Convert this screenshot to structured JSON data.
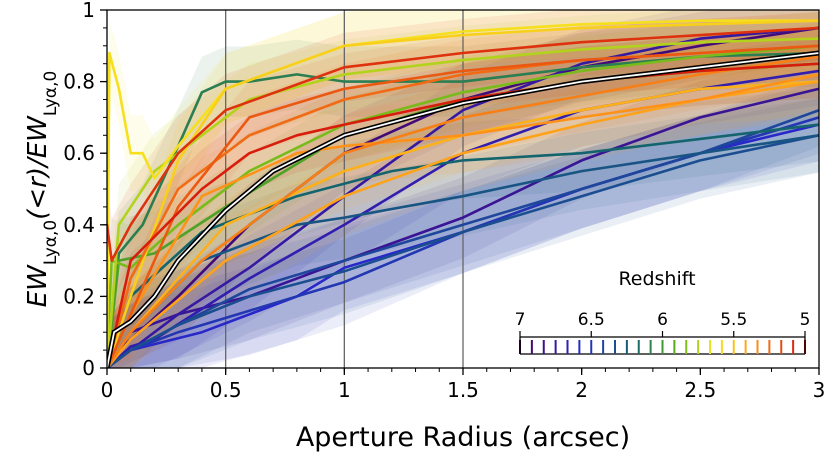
{
  "chart_data": {
    "type": "line",
    "xlabel": "Aperture  Radius  (arcsec)",
    "ylabel": "EW_{Lyα,0}(<r)/EW_{Lyα,0}",
    "xlim": [
      0,
      3
    ],
    "ylim": [
      0,
      1
    ],
    "xticks": [
      0,
      0.5,
      1,
      1.5,
      2,
      2.5,
      3
    ],
    "xtick_labels": [
      "0",
      "0.5",
      "1",
      "1.5",
      "2",
      "2.5",
      "3"
    ],
    "yticks": [
      0,
      0.2,
      0.4,
      0.6,
      0.8,
      1
    ],
    "ytick_labels": [
      "0",
      "0.2",
      "0.4",
      "0.6",
      "0.8",
      "1"
    ],
    "vlines": [
      0.5,
      1.0,
      1.5
    ],
    "grid": false,
    "colorbar": {
      "title": "Redshift",
      "range": [
        7,
        5
      ],
      "ticks": [
        7,
        6.5,
        6,
        5.5,
        5
      ],
      "tick_labels": [
        "7",
        "6.5",
        "6",
        "5.5",
        "5"
      ],
      "segments": 24
    },
    "median_curve": {
      "x": [
        0,
        0.03,
        0.1,
        0.2,
        0.3,
        0.5,
        0.7,
        1.0,
        1.5,
        2.0,
        2.5,
        3.0
      ],
      "y": [
        0.0,
        0.1,
        0.13,
        0.2,
        0.3,
        0.44,
        0.55,
        0.65,
        0.74,
        0.8,
        0.84,
        0.88
      ]
    },
    "series": [
      {
        "z": 6.9,
        "x": [
          0,
          0.05,
          0.3,
          0.6,
          1.0,
          1.5,
          2.0,
          2.5,
          3.0
        ],
        "y": [
          0.0,
          0.05,
          0.2,
          0.4,
          0.6,
          0.75,
          0.84,
          0.9,
          0.95
        ]
      },
      {
        "z": 6.8,
        "x": [
          0,
          0.1,
          0.3,
          0.6,
          1.0,
          1.5,
          2.0,
          2.5,
          3.0
        ],
        "y": [
          0.0,
          0.1,
          0.15,
          0.2,
          0.3,
          0.42,
          0.58,
          0.7,
          0.78
        ]
      },
      {
        "z": 6.75,
        "x": [
          0,
          0.1,
          0.3,
          0.6,
          1.0,
          1.5,
          2.0,
          2.5,
          3.0
        ],
        "y": [
          0.0,
          0.05,
          0.15,
          0.28,
          0.48,
          0.72,
          0.85,
          0.92,
          0.95
        ]
      },
      {
        "z": 6.7,
        "x": [
          0,
          0.1,
          0.2,
          0.6,
          1.0,
          1.5,
          2.0,
          2.5,
          3.0
        ],
        "y": [
          0.0,
          0.06,
          0.08,
          0.25,
          0.4,
          0.6,
          0.72,
          0.78,
          0.83
        ]
      },
      {
        "z": 6.6,
        "x": [
          0,
          0.1,
          0.4,
          0.8,
          1.0,
          1.5,
          2.0,
          2.5,
          3.0
        ],
        "y": [
          0.0,
          0.05,
          0.1,
          0.2,
          0.28,
          0.38,
          0.5,
          0.6,
          0.68
        ]
      },
      {
        "z": 6.5,
        "x": [
          0,
          0.1,
          0.3,
          0.6,
          1.0,
          1.5,
          2.0,
          2.5,
          3.0
        ],
        "y": [
          0.0,
          0.05,
          0.1,
          0.16,
          0.24,
          0.38,
          0.5,
          0.6,
          0.7
        ]
      },
      {
        "z": 6.4,
        "x": [
          0,
          0.1,
          0.3,
          0.6,
          1.0,
          1.5,
          2.0,
          2.5,
          3.0
        ],
        "y": [
          0.0,
          0.05,
          0.12,
          0.22,
          0.3,
          0.4,
          0.5,
          0.6,
          0.72
        ]
      },
      {
        "z": 6.35,
        "x": [
          0,
          0.1,
          0.3,
          0.6,
          1.0,
          1.5,
          2.0,
          2.5,
          3.0
        ],
        "y": [
          0.0,
          0.05,
          0.12,
          0.2,
          0.27,
          0.38,
          0.48,
          0.58,
          0.65
        ]
      },
      {
        "z": 6.3,
        "x": [
          0,
          0.1,
          0.4,
          0.8,
          1.0,
          1.5,
          2.0,
          2.5,
          3.0
        ],
        "y": [
          0.0,
          0.1,
          0.3,
          0.4,
          0.42,
          0.48,
          0.55,
          0.6,
          0.65
        ]
      },
      {
        "z": 6.2,
        "x": [
          0,
          0.1,
          0.4,
          0.8,
          1.2,
          1.5,
          2.0,
          2.5,
          3.0
        ],
        "y": [
          0.0,
          0.2,
          0.38,
          0.48,
          0.55,
          0.58,
          0.6,
          0.64,
          0.68
        ]
      },
      {
        "z": 6.1,
        "x": [
          0,
          0.05,
          0.15,
          0.3,
          0.4,
          0.5,
          0.6,
          0.8,
          1.0,
          1.5,
          2.0,
          2.5,
          3.0
        ],
        "y": [
          0.0,
          0.32,
          0.4,
          0.62,
          0.77,
          0.8,
          0.8,
          0.82,
          0.8,
          0.8,
          0.84,
          0.87,
          0.88
        ]
      },
      {
        "z": 5.95,
        "x": [
          0,
          0.05,
          0.2,
          0.5,
          1.0,
          1.5,
          2.0,
          2.5,
          3.0
        ],
        "y": [
          0.0,
          0.3,
          0.32,
          0.45,
          0.65,
          0.75,
          0.8,
          0.83,
          0.85
        ]
      },
      {
        "z": 5.85,
        "x": [
          0,
          0.02,
          0.1,
          0.3,
          0.6,
          1.0,
          1.5,
          2.0,
          2.5,
          3.0
        ],
        "y": [
          0.05,
          0.3,
          0.28,
          0.4,
          0.55,
          0.68,
          0.77,
          0.83,
          0.87,
          0.9
        ]
      },
      {
        "z": 5.75,
        "x": [
          0,
          0.05,
          0.2,
          0.4,
          0.6,
          1.0,
          1.5,
          2.0,
          2.5,
          3.0
        ],
        "y": [
          0.0,
          0.4,
          0.55,
          0.65,
          0.75,
          0.82,
          0.86,
          0.89,
          0.91,
          0.92
        ]
      },
      {
        "z": 5.6,
        "x": [
          0,
          0.01,
          0.05,
          0.1,
          0.15,
          0.2,
          0.3,
          0.5,
          1.0,
          1.5,
          2.0,
          2.5,
          3.0
        ],
        "y": [
          0.0,
          0.88,
          0.78,
          0.6,
          0.6,
          0.53,
          0.62,
          0.78,
          0.9,
          0.94,
          0.96,
          0.97,
          0.97
        ]
      },
      {
        "z": 5.55,
        "x": [
          0,
          0.1,
          0.3,
          0.5,
          1.0,
          1.5,
          2.0,
          2.5,
          3.0
        ],
        "y": [
          0.0,
          0.2,
          0.58,
          0.78,
          0.9,
          0.93,
          0.95,
          0.96,
          0.97
        ]
      },
      {
        "z": 5.45,
        "x": [
          0,
          0.1,
          0.5,
          1.0,
          1.5,
          2.0,
          2.5,
          3.0
        ],
        "y": [
          0.0,
          0.1,
          0.4,
          0.55,
          0.65,
          0.72,
          0.78,
          0.8
        ]
      },
      {
        "z": 5.4,
        "x": [
          0,
          0.1,
          0.5,
          1.0,
          1.5,
          2.0,
          2.5,
          3.0
        ],
        "y": [
          0.0,
          0.08,
          0.3,
          0.48,
          0.6,
          0.68,
          0.75,
          0.8
        ]
      },
      {
        "z": 5.35,
        "x": [
          0,
          0.1,
          0.4,
          0.8,
          1.0,
          1.5,
          2.0,
          2.5,
          3.0
        ],
        "y": [
          0.0,
          0.15,
          0.48,
          0.6,
          0.62,
          0.65,
          0.7,
          0.75,
          0.82
        ]
      },
      {
        "z": 5.3,
        "x": [
          0,
          0.1,
          0.4,
          0.8,
          1.0,
          1.5,
          2.0,
          2.5,
          3.0
        ],
        "y": [
          0.0,
          0.1,
          0.3,
          0.5,
          0.6,
          0.7,
          0.76,
          0.82,
          0.87
        ]
      },
      {
        "z": 5.25,
        "x": [
          0,
          0.1,
          0.3,
          0.6,
          1.0,
          1.5,
          2.0,
          2.5,
          3.0
        ],
        "y": [
          0.0,
          0.25,
          0.5,
          0.65,
          0.75,
          0.82,
          0.86,
          0.88,
          0.9
        ]
      },
      {
        "z": 5.2,
        "x": [
          0,
          0.1,
          0.3,
          0.6,
          1.0,
          1.5,
          2.0,
          2.5,
          3.0
        ],
        "y": [
          0.0,
          0.15,
          0.45,
          0.7,
          0.78,
          0.83,
          0.86,
          0.88,
          0.9
        ]
      },
      {
        "z": 5.1,
        "x": [
          0,
          0.02,
          0.1,
          0.3,
          0.5,
          1.0,
          1.5,
          2.0,
          2.5,
          3.0
        ],
        "y": [
          0.4,
          0.3,
          0.4,
          0.6,
          0.72,
          0.84,
          0.88,
          0.91,
          0.93,
          0.95
        ]
      },
      {
        "z": 5.05,
        "x": [
          0,
          0.1,
          0.4,
          0.6,
          0.8,
          1.0,
          1.5,
          2.0,
          2.5,
          3.0
        ],
        "y": [
          0.0,
          0.3,
          0.5,
          0.6,
          0.65,
          0.68,
          0.75,
          0.8,
          0.83,
          0.85
        ]
      }
    ]
  }
}
